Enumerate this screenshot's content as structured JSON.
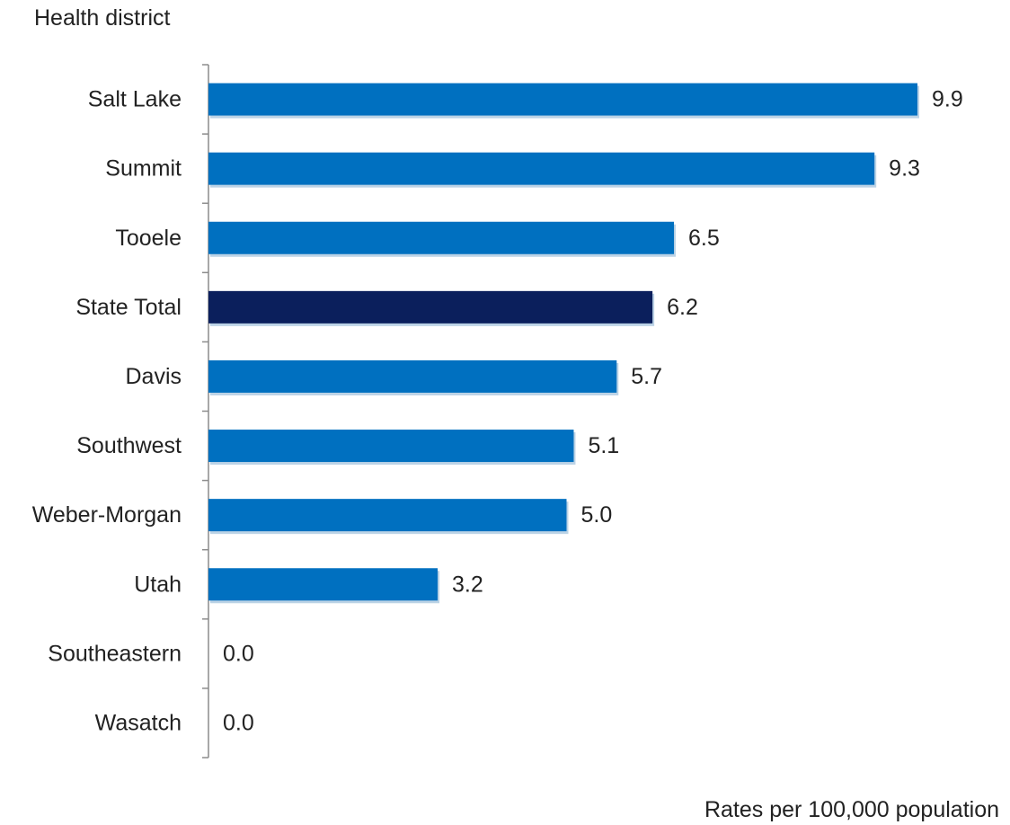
{
  "chart_data": {
    "type": "bar",
    "orientation": "horizontal",
    "ylabel": "Health district",
    "xlabel": "Rates per 100,000 population",
    "categories": [
      "Salt Lake",
      "Summit",
      "Tooele",
      "State Total",
      "Davis",
      "Southwest",
      "Weber-Morgan",
      "Utah",
      "Southeastern",
      "Wasatch"
    ],
    "values": [
      9.9,
      9.3,
      6.5,
      6.2,
      5.7,
      5.1,
      5.0,
      3.2,
      0.0,
      0.0
    ],
    "value_labels": [
      "9.9",
      "9.3",
      "6.5",
      "6.2",
      "5.7",
      "5.1",
      "5.0",
      "3.2",
      "0.0",
      "0.0"
    ],
    "xlim": [
      0,
      9.9
    ],
    "grid": false,
    "legend": "none",
    "colors": {
      "bar": "#0070c0",
      "highlight": "#0b1f5c",
      "highlight_category": "State Total",
      "axis": "#8c8c8c"
    }
  }
}
